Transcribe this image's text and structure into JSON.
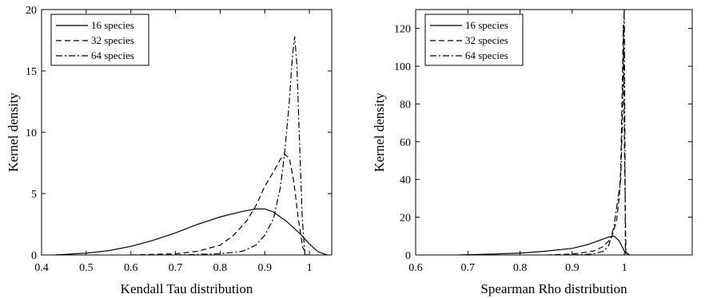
{
  "chart_data": [
    {
      "type": "line",
      "xlabel": "Kendall Tau distribution",
      "ylabel": "Kernel density",
      "xlim": [
        0.4,
        1.05
      ],
      "ylim": [
        0,
        20
      ],
      "xticks": [
        0.4,
        0.5,
        0.6,
        0.7,
        0.8,
        0.9,
        1
      ],
      "xtick_labels": [
        "0.4",
        "0.5",
        "0.6",
        "0.7",
        "0.8",
        "0.9",
        "1"
      ],
      "yticks": [
        0,
        5,
        10,
        15,
        20
      ],
      "ytick_labels": [
        "0",
        "5",
        "10",
        "15",
        "20"
      ],
      "legend_position": "top-left",
      "series": [
        {
          "name": "16 species",
          "style": "solid",
          "x": [
            0.43,
            0.5,
            0.55,
            0.6,
            0.65,
            0.7,
            0.75,
            0.8,
            0.85,
            0.88,
            0.9,
            0.92,
            0.95,
            0.98,
            1.0,
            1.02,
            1.04
          ],
          "y": [
            0.0,
            0.15,
            0.35,
            0.7,
            1.2,
            1.8,
            2.5,
            3.1,
            3.55,
            3.75,
            3.75,
            3.5,
            2.7,
            1.7,
            0.9,
            0.25,
            0.0
          ]
        },
        {
          "name": "32 species",
          "style": "dashed",
          "x": [
            0.6,
            0.7,
            0.75,
            0.8,
            0.83,
            0.86,
            0.88,
            0.9,
            0.92,
            0.935,
            0.945,
            0.955,
            0.965,
            0.975,
            0.985,
            0.995
          ],
          "y": [
            0.0,
            0.1,
            0.3,
            0.8,
            1.6,
            2.8,
            4.0,
            5.6,
            6.8,
            7.8,
            8.2,
            7.9,
            6.0,
            3.0,
            0.6,
            0.0
          ]
        },
        {
          "name": "64 species",
          "style": "dashdot",
          "x": [
            0.7,
            0.8,
            0.85,
            0.88,
            0.9,
            0.92,
            0.935,
            0.945,
            0.955,
            0.962,
            0.967,
            0.972,
            0.978,
            0.984,
            0.99
          ],
          "y": [
            0.0,
            0.1,
            0.3,
            0.8,
            1.6,
            3.0,
            5.5,
            8.5,
            12.5,
            16.2,
            17.8,
            15.5,
            9.0,
            3.0,
            0.0
          ]
        }
      ]
    },
    {
      "type": "line",
      "xlabel": "Spearman Rho distribution",
      "ylabel": "Kernel density",
      "xlim": [
        0.6,
        1.13
      ],
      "ylim": [
        0,
        130
      ],
      "xticks": [
        0.6,
        0.7,
        0.8,
        0.9,
        1
      ],
      "xtick_labels": [
        "0.6",
        "0.7",
        "0.8",
        "0.9",
        "1"
      ],
      "yticks": [
        0,
        20,
        40,
        60,
        80,
        100,
        120
      ],
      "ytick_labels": [
        "0",
        "20",
        "40",
        "60",
        "80",
        "100",
        "120"
      ],
      "legend_position": "top-left",
      "series": [
        {
          "name": "16 species",
          "style": "solid",
          "x": [
            0.68,
            0.75,
            0.8,
            0.85,
            0.9,
            0.93,
            0.95,
            0.97,
            0.98,
            0.99,
            1.0,
            1.01
          ],
          "y": [
            0.0,
            0.5,
            1.0,
            2.0,
            3.5,
            5.5,
            7.5,
            9.5,
            10.0,
            7.5,
            2.0,
            0.0
          ]
        },
        {
          "name": "32 species",
          "style": "dashed",
          "x": [
            0.85,
            0.9,
            0.94,
            0.96,
            0.975,
            0.985,
            0.99,
            0.993,
            0.996,
            0.998,
            1.0,
            1.003
          ],
          "y": [
            0.0,
            0.5,
            2.0,
            4.5,
            9.0,
            18.0,
            30.0,
            45.0,
            90.0,
            122.0,
            60.0,
            0.0
          ]
        },
        {
          "name": "64 species",
          "style": "dashdot",
          "x": [
            0.9,
            0.94,
            0.96,
            0.97,
            0.98,
            0.985,
            0.99,
            0.993,
            0.996,
            0.998,
            0.9995,
            1.0,
            1.002
          ],
          "y": [
            0.0,
            0.5,
            2.0,
            5.0,
            15.0,
            25.0,
            34.0,
            40.0,
            70.0,
            100.0,
            130.0,
            120.0,
            0.0
          ]
        }
      ]
    }
  ]
}
